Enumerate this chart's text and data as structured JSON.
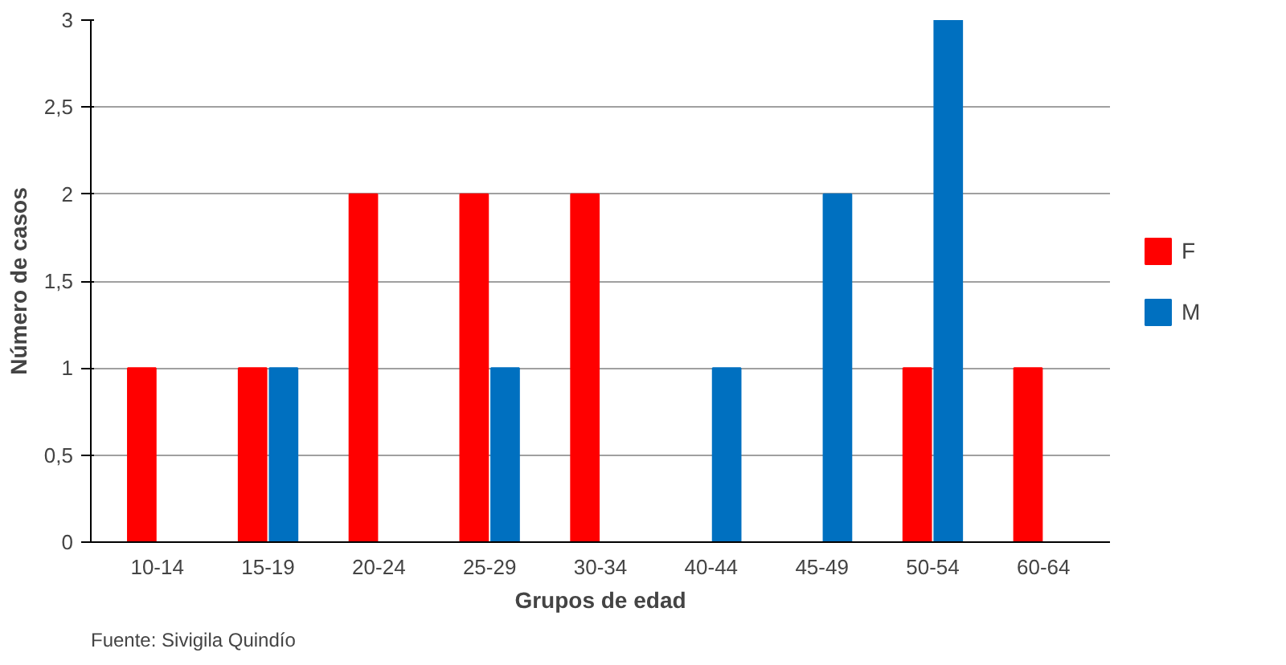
{
  "chart_data": {
    "type": "bar",
    "ylabel": "Número de casos",
    "xlabel": "Grupos de edad",
    "categories": [
      "10-14",
      "15-19",
      "20-24",
      "25-29",
      "30-34",
      "40-44",
      "45-49",
      "50-54",
      "60-64"
    ],
    "series": [
      {
        "name": "F",
        "color": "#ff0000",
        "values": [
          1,
          1,
          2,
          2,
          2,
          0,
          0,
          1,
          1
        ]
      },
      {
        "name": "M",
        "color": "#0070c0",
        "values": [
          0,
          1,
          0,
          1,
          0,
          1,
          2,
          3,
          0
        ]
      }
    ],
    "ylim": [
      0,
      3
    ],
    "yticks": [
      0,
      {
        "value": 0.5,
        "label": "0,5"
      },
      1,
      {
        "value": 1.5,
        "label": "1,5"
      },
      2,
      {
        "value": 2.5,
        "label": "2,5"
      },
      3
    ],
    "grid": "y",
    "legend": "right",
    "annotations": [
      "Fuente: Sivigila Quindío"
    ]
  }
}
